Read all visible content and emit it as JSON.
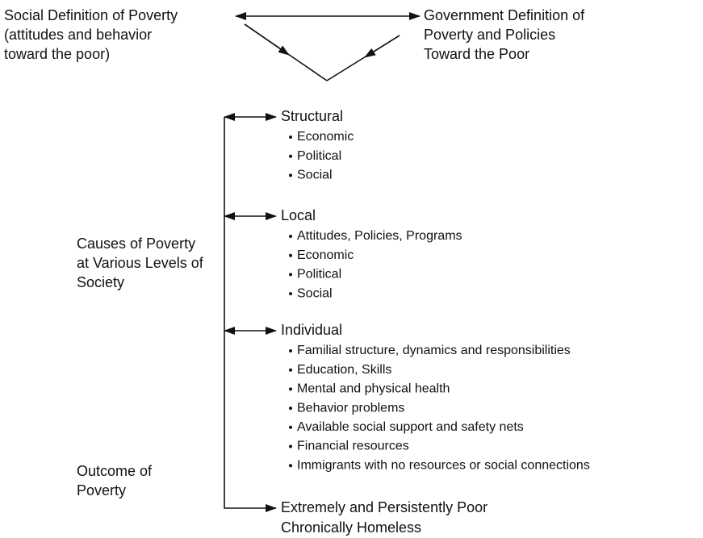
{
  "top": {
    "left": [
      "Social Definition of Poverty",
      "(attitudes and behavior",
      "toward the poor)"
    ],
    "right": [
      "Government Definition of",
      "Poverty and Policies",
      "Toward the Poor"
    ]
  },
  "causes_label": [
    "Causes of Poverty",
    "at Various Levels of",
    "Society"
  ],
  "outcome_label": [
    "Outcome of",
    "Poverty"
  ],
  "levels": [
    {
      "title": "Structural",
      "items": [
        "Economic",
        "Political",
        "Social"
      ]
    },
    {
      "title": "Local",
      "items": [
        "Attitudes, Policies, Programs",
        "Economic",
        "Political",
        "Social"
      ]
    },
    {
      "title": "Individual",
      "items": [
        "Familial structure, dynamics and responsibilities",
        "Education, Skills",
        "Mental and physical health",
        "Behavior problems",
        "Available social support and safety nets",
        "Financial resources",
        "Immigrants with no resources or social connections"
      ]
    }
  ],
  "outcome": [
    "Extremely and Persistently Poor",
    "Chronically Homeless"
  ]
}
